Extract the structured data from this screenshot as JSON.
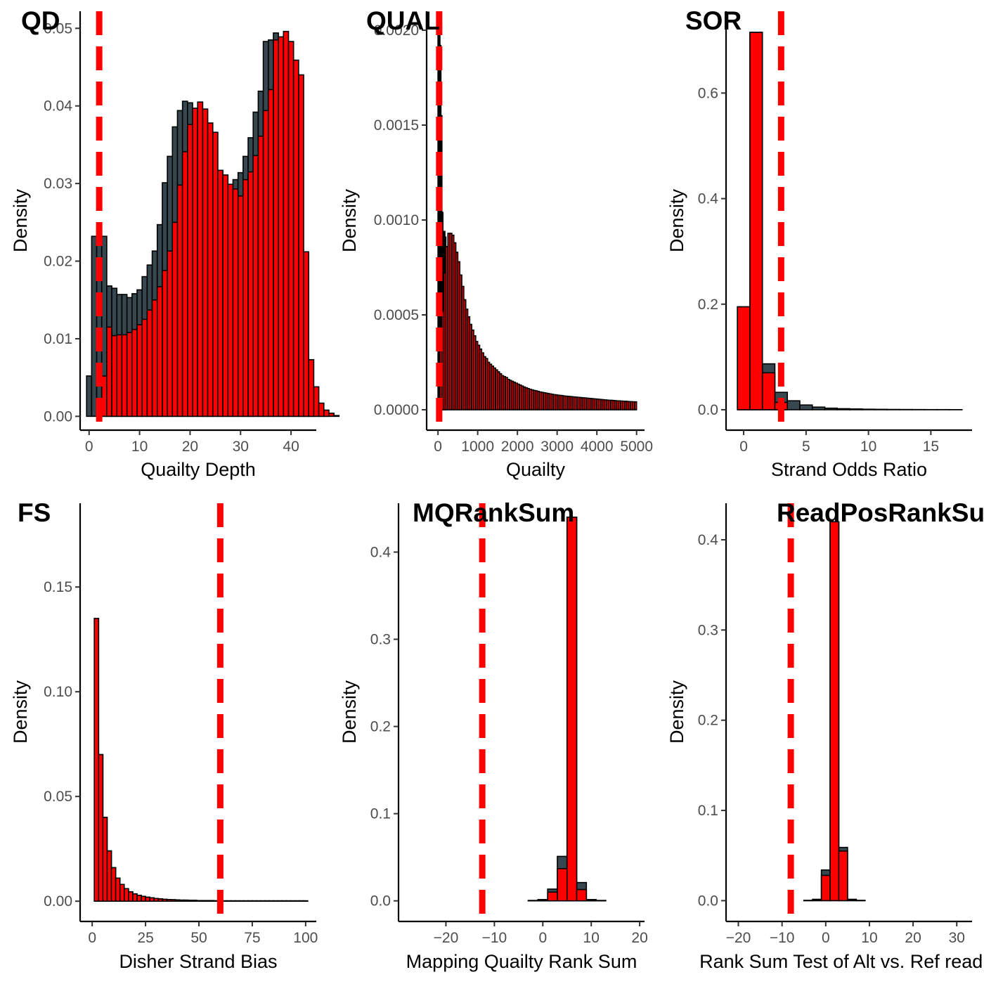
{
  "colors": {
    "grey_fill": "#37474f",
    "red_fill": "#ff0000",
    "bar_stroke": "#000000",
    "threshold": "#ff0000"
  },
  "chart_data": [
    {
      "id": "qd",
      "type": "bar",
      "title": "QD",
      "xlabel": "Quailty Depth",
      "ylabel": "Density",
      "xlim": [
        -1.5,
        45
      ],
      "ylim": [
        -0.0016,
        0.0522
      ],
      "xticks": [
        0,
        10,
        20,
        30,
        40
      ],
      "yticks": [
        0.0,
        0.01,
        0.02,
        0.03,
        0.04,
        0.05
      ],
      "ytick_labels": [
        "0.00",
        "0.01",
        "0.02",
        "0.03",
        "0.04",
        "0.05"
      ],
      "threshold": 2,
      "series": [
        {
          "x0": -0.5,
          "width": 1,
          "values": [
            0.0052,
            0.0232,
            0.0245,
            0.0232,
            0.0168,
            0.0165,
            0.0157,
            0.0157,
            0.0153,
            0.0158,
            0.0163,
            0.018,
            0.0195,
            0.0213,
            0.0247,
            0.0301,
            0.0335,
            0.0373,
            0.0394,
            0.0406,
            0.0404,
            0.0392,
            0.0374,
            0.0366,
            0.0317,
            0.0313,
            0.0301,
            0.0294,
            0.0285,
            0.0305,
            0.0314,
            0.0335,
            0.0359,
            0.0392,
            0.0419,
            0.0483,
            0.0485,
            0.0494,
            0.0479,
            0.0456,
            0.0438,
            0.0214,
            0.0074,
            0.0038,
            0.0017,
            0.0008,
            0.0004,
            0.0001
          ]
        },
        {
          "x0": 1.5,
          "width": 1,
          "values": [
            0.0,
            0.0052,
            0.0115,
            0.0104,
            0.0105,
            0.0105,
            0.0108,
            0.0112,
            0.0118,
            0.0125,
            0.0137,
            0.015,
            0.0167,
            0.0188,
            0.0213,
            0.025,
            0.0298,
            0.0341,
            0.0376,
            0.0397,
            0.0405,
            0.0396,
            0.0378,
            0.0366,
            0.0317,
            0.0311,
            0.0299,
            0.0293,
            0.0284,
            0.0305,
            0.0315,
            0.0336,
            0.0361,
            0.0394,
            0.0421,
            0.0485,
            0.0489,
            0.0496,
            0.0483,
            0.0459,
            0.044,
            0.0212,
            0.0073,
            0.0038,
            0.0017,
            0.0008,
            0.0004,
            0.0001
          ]
        }
      ]
    },
    {
      "id": "qual",
      "type": "bar",
      "title": "QUAL",
      "xlabel": "Quailty",
      "ylabel": "Density",
      "xlim": [
        -250,
        5200
      ],
      "ylim": [
        -0.0001,
        0.0021
      ],
      "xticks": [
        0,
        1000,
        2000,
        3000,
        4000,
        5000
      ],
      "yticks": [
        0.0,
        0.0005,
        0.001,
        0.0015,
        0.002
      ],
      "ytick_labels": [
        "0.0000",
        "0.0005",
        "0.0010",
        "0.0015",
        "0.0020"
      ],
      "threshold": 30,
      "series": [
        {
          "x0": 0,
          "width": 25,
          "values": [
            0.00208,
            0.00206,
            0.00192,
            0.00155,
            0.00104,
            0.00081,
            0.00094,
            0.00091
          ]
        },
        {
          "x0": 0,
          "width": 50,
          "values": [
            0.0,
            0.00034,
            0.00052,
            0.00072,
            0.00086,
            0.00093,
            0.00093,
            0.00092,
            0.00088,
            0.00083,
            0.00078,
            0.00071,
            0.00065,
            0.00058,
            0.00053,
            0.00049,
            0.00045,
            0.00042,
            0.00039,
            0.00036,
            0.00034,
            0.00032,
            0.0003,
            0.00028,
            0.00027,
            0.00025,
            0.00024,
            0.00023,
            0.00022,
            0.00021,
            0.0002,
            0.00019,
            0.00018,
            0.000175,
            0.00017,
            0.00016,
            0.000155,
            0.00015,
            0.000145,
            0.00014,
            0.000135,
            0.00013,
            0.000125,
            0.00012,
            0.000116,
            0.000112,
            0.000108,
            0.000105,
            0.000102,
            0.0001,
            9.7e-05,
            9.4e-05,
            9.2e-05,
            9e-05,
            8.8e-05,
            8.6e-05,
            8.4e-05,
            8.2e-05,
            8e-05,
            7.9e-05,
            7.7e-05,
            7.6e-05,
            7.5e-05,
            7.3e-05,
            7.2e-05,
            7.1e-05,
            7e-05,
            6.9e-05,
            6.8e-05,
            6.7e-05,
            6.6e-05,
            6.5e-05,
            6.4e-05,
            6.3e-05,
            6.2e-05,
            6.1e-05,
            6e-05,
            5.9e-05,
            5.8e-05,
            5.7e-05,
            5.6e-05,
            5.5e-05,
            5.4e-05,
            5.3e-05,
            5.2e-05,
            5.1e-05,
            5e-05,
            5e-05,
            4.9e-05,
            4.8e-05,
            4.7e-05,
            4.7e-05,
            4.6e-05,
            4.5e-05,
            4.5e-05,
            4.4e-05,
            4.3e-05,
            4.3e-05,
            4.2e-05,
            4.2e-05
          ]
        }
      ]
    },
    {
      "id": "sor",
      "type": "bar",
      "title": "SOR",
      "xlabel": "Strand Odds Ratio",
      "ylabel": "Density",
      "xlim": [
        -1.3,
        18.3
      ],
      "ylim": [
        -0.036,
        0.755
      ],
      "xticks": [
        0,
        5,
        10,
        15
      ],
      "yticks": [
        0.0,
        0.2,
        0.4,
        0.6
      ],
      "ytick_labels": [
        "0.0",
        "0.2",
        "0.4",
        "0.6"
      ],
      "threshold": 3,
      "series": [
        {
          "x0": -0.5,
          "width": 1,
          "values": [
            0.195,
            0.715,
            0.087,
            0.033,
            0.017,
            0.009,
            0.005,
            0.003,
            0.002,
            0.0015,
            0.001,
            0.0008,
            0.0006,
            0.0005,
            0.0004,
            0.0003,
            0.0003,
            0.0002
          ]
        },
        {
          "x0": -0.5,
          "width": 1,
          "values": [
            0.195,
            0.715,
            0.07,
            0.014,
            0.0
          ]
        }
      ]
    },
    {
      "id": "fs",
      "type": "bar",
      "title": "FS",
      "xlabel": "Disher Strand Bias",
      "ylabel": "Density",
      "xlim": [
        -5,
        105
      ],
      "ylim": [
        -0.009,
        0.19
      ],
      "xticks": [
        0,
        25,
        50,
        75,
        100
      ],
      "yticks": [
        0.0,
        0.05,
        0.1,
        0.15
      ],
      "ytick_labels": [
        "0.00",
        "0.05",
        "0.10",
        "0.15"
      ],
      "threshold": 60,
      "series": [
        {
          "x0": 1,
          "width": 2,
          "values": [
            0.135,
            0.07,
            0.04,
            0.024,
            0.016,
            0.011,
            0.008,
            0.006,
            0.0045,
            0.0035,
            0.0028,
            0.0023,
            0.0019,
            0.0016,
            0.0013,
            0.0011,
            0.0009,
            0.0008,
            0.0007,
            0.0006,
            0.0005,
            0.0005,
            0.0004,
            0.0004,
            0.0003,
            0.0003,
            0.0003,
            0.0003,
            0.0002,
            0.0002,
            0.0002,
            0.0002,
            0.0002,
            0.0002,
            0.0002,
            0.0002,
            0.0002,
            0.0002,
            0.0002,
            0.0002,
            0.0002,
            0.0002,
            0.0002,
            0.0002,
            0.0002,
            0.0002,
            0.0002,
            0.0002,
            0.0002,
            0.0002
          ]
        },
        {
          "x0": 1,
          "width": 2,
          "values": [
            0.135,
            0.07,
            0.04,
            0.024,
            0.016,
            0.011,
            0.008,
            0.006,
            0.0045,
            0.0035,
            0.0028,
            0.0023,
            0.0019,
            0.0016,
            0.0013,
            0.0011,
            0.0009,
            0.0008,
            0.0007,
            0.0006,
            0.0005,
            0.0005,
            0.0004,
            0.0004,
            0.0003,
            0.0003,
            0.0003,
            0.0003,
            0.0002,
            0.0002
          ]
        }
      ]
    },
    {
      "id": "mqranksum",
      "type": "bar",
      "title": "MQRankSum",
      "xlabel": "Mapping Quailty Rank Sum",
      "ylabel": "Density",
      "xlim": [
        -29.5,
        21
      ],
      "ylim": [
        -0.022,
        0.456
      ],
      "xticks": [
        -20,
        -10,
        0,
        10,
        20
      ],
      "xtick_labels": [
        "−20",
        "−10",
        "0",
        "10",
        "20"
      ],
      "yticks": [
        0.0,
        0.1,
        0.2,
        0.3,
        0.4
      ],
      "ytick_labels": [
        "0.0",
        "0.1",
        "0.2",
        "0.3",
        "0.4"
      ],
      "threshold": -12.5,
      "series": [
        {
          "x0": -27,
          "width": 2,
          "values": [
            0,
            0,
            0,
            0,
            0,
            0,
            0,
            0,
            0,
            0,
            0,
            0,
            0.0005,
            0.0015,
            0.0135,
            0.051,
            0.44,
            0.021,
            0.0015,
            0.0005,
            0,
            0,
            0
          ]
        },
        {
          "x0": -27,
          "width": 2,
          "values": [
            0,
            0,
            0,
            0,
            0,
            0,
            0,
            0,
            0,
            0,
            0,
            0,
            0.0003,
            0.001,
            0.01,
            0.037,
            0.44,
            0.013,
            0.001,
            0.0003,
            0,
            0,
            0
          ]
        }
      ]
    },
    {
      "id": "readposranksum",
      "type": "bar",
      "title": "ReadPosRankSum",
      "xlabel": "Rank Sum Test of Alt vs. Ref read p",
      "ylabel": "Density",
      "xlim": [
        -22.5,
        33.5
      ],
      "ylim": [
        -0.0215,
        0.4405
      ],
      "xticks": [
        -20,
        -10,
        0,
        10,
        20,
        30
      ],
      "xtick_labels": [
        "−20",
        "−10",
        "0",
        "10",
        "20",
        "30"
      ],
      "yticks": [
        0.0,
        0.1,
        0.2,
        0.3,
        0.4
      ],
      "ytick_labels": [
        "0.0",
        "0.1",
        "0.2",
        "0.3",
        "0.4"
      ],
      "threshold": -8,
      "series": [
        {
          "x0": -19,
          "width": 2,
          "values": [
            0,
            0,
            0,
            0,
            0,
            0,
            0,
            0.0003,
            0.0015,
            0.034,
            0.42,
            0.059,
            0.0015,
            0.0003,
            0,
            0,
            0,
            0,
            0,
            0,
            0,
            0,
            0,
            0,
            0
          ]
        },
        {
          "x0": -19,
          "width": 2,
          "values": [
            0,
            0,
            0,
            0,
            0,
            0,
            0,
            0.0002,
            0.001,
            0.028,
            0.42,
            0.055,
            0.001,
            0.0002,
            0,
            0,
            0,
            0,
            0,
            0,
            0,
            0,
            0,
            0,
            0
          ]
        }
      ]
    }
  ]
}
